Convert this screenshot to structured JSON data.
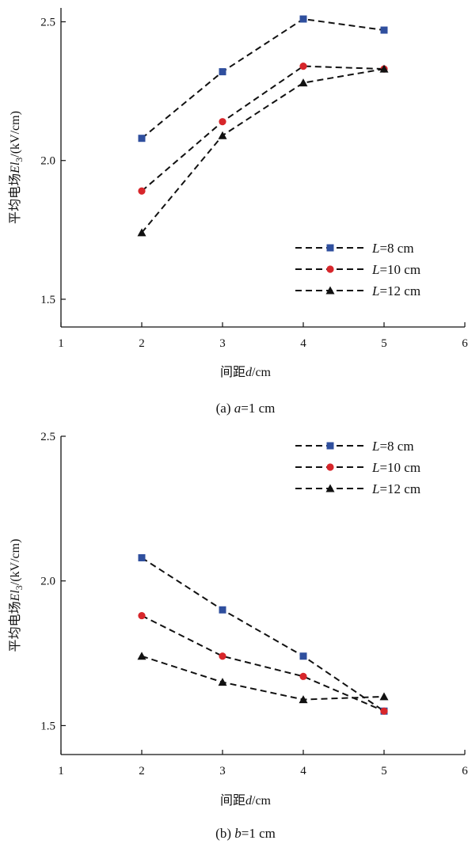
{
  "chart_data": [
    {
      "type": "line",
      "caption_label": "(a)",
      "caption_var": "a",
      "caption_rest": "=1 cm",
      "xlabel_pre": "间距",
      "xlabel_var": "d",
      "xlabel_post": "/cm",
      "ylabel_pre": "平均电场",
      "ylabel_var": "El",
      "ylabel_sub": "3",
      "ylabel_post": "/(kV/cm)",
      "xlim": [
        1,
        6
      ],
      "ylim": [
        1.4,
        2.55
      ],
      "xticks": [
        "1",
        "2",
        "3",
        "4",
        "5",
        "6"
      ],
      "yticks": [
        "1.5",
        "2.0",
        "2.5"
      ],
      "legend_position": "bottom-right",
      "x": [
        2,
        3,
        4,
        5
      ],
      "series": [
        {
          "name_var": "L",
          "name_rest": "=8 cm",
          "marker": "square",
          "color": "#2f4f9e",
          "values": [
            2.08,
            2.32,
            2.51,
            2.47
          ]
        },
        {
          "name_var": "L",
          "name_rest": "=10 cm",
          "marker": "circle",
          "color": "#d7262b",
          "values": [
            1.89,
            2.14,
            2.34,
            2.33
          ]
        },
        {
          "name_var": "L",
          "name_rest": "=12 cm",
          "marker": "triangle",
          "color": "#111111",
          "values": [
            1.74,
            2.09,
            2.28,
            2.33
          ]
        }
      ]
    },
    {
      "type": "line",
      "caption_label": "(b)",
      "caption_var": "b",
      "caption_rest": "=1 cm",
      "xlabel_pre": "间距",
      "xlabel_var": "d",
      "xlabel_post": "/cm",
      "ylabel_pre": "平均电场",
      "ylabel_var": "El",
      "ylabel_sub": "3",
      "ylabel_post": "/(kV/cm)",
      "xlim": [
        1,
        6
      ],
      "ylim": [
        1.4,
        2.5
      ],
      "xticks": [
        "1",
        "2",
        "3",
        "4",
        "5",
        "6"
      ],
      "yticks": [
        "1.5",
        "2.0",
        "2.5"
      ],
      "legend_position": "top-right",
      "x": [
        2,
        3,
        4,
        5
      ],
      "series": [
        {
          "name_var": "L",
          "name_rest": "=8 cm",
          "marker": "square",
          "color": "#2f4f9e",
          "values": [
            2.08,
            1.9,
            1.74,
            1.55
          ]
        },
        {
          "name_var": "L",
          "name_rest": "=10 cm",
          "marker": "circle",
          "color": "#d7262b",
          "values": [
            1.88,
            1.74,
            1.67,
            1.55
          ]
        },
        {
          "name_var": "L",
          "name_rest": "=12 cm",
          "marker": "triangle",
          "color": "#111111",
          "values": [
            1.74,
            1.65,
            1.59,
            1.6
          ]
        }
      ]
    }
  ]
}
